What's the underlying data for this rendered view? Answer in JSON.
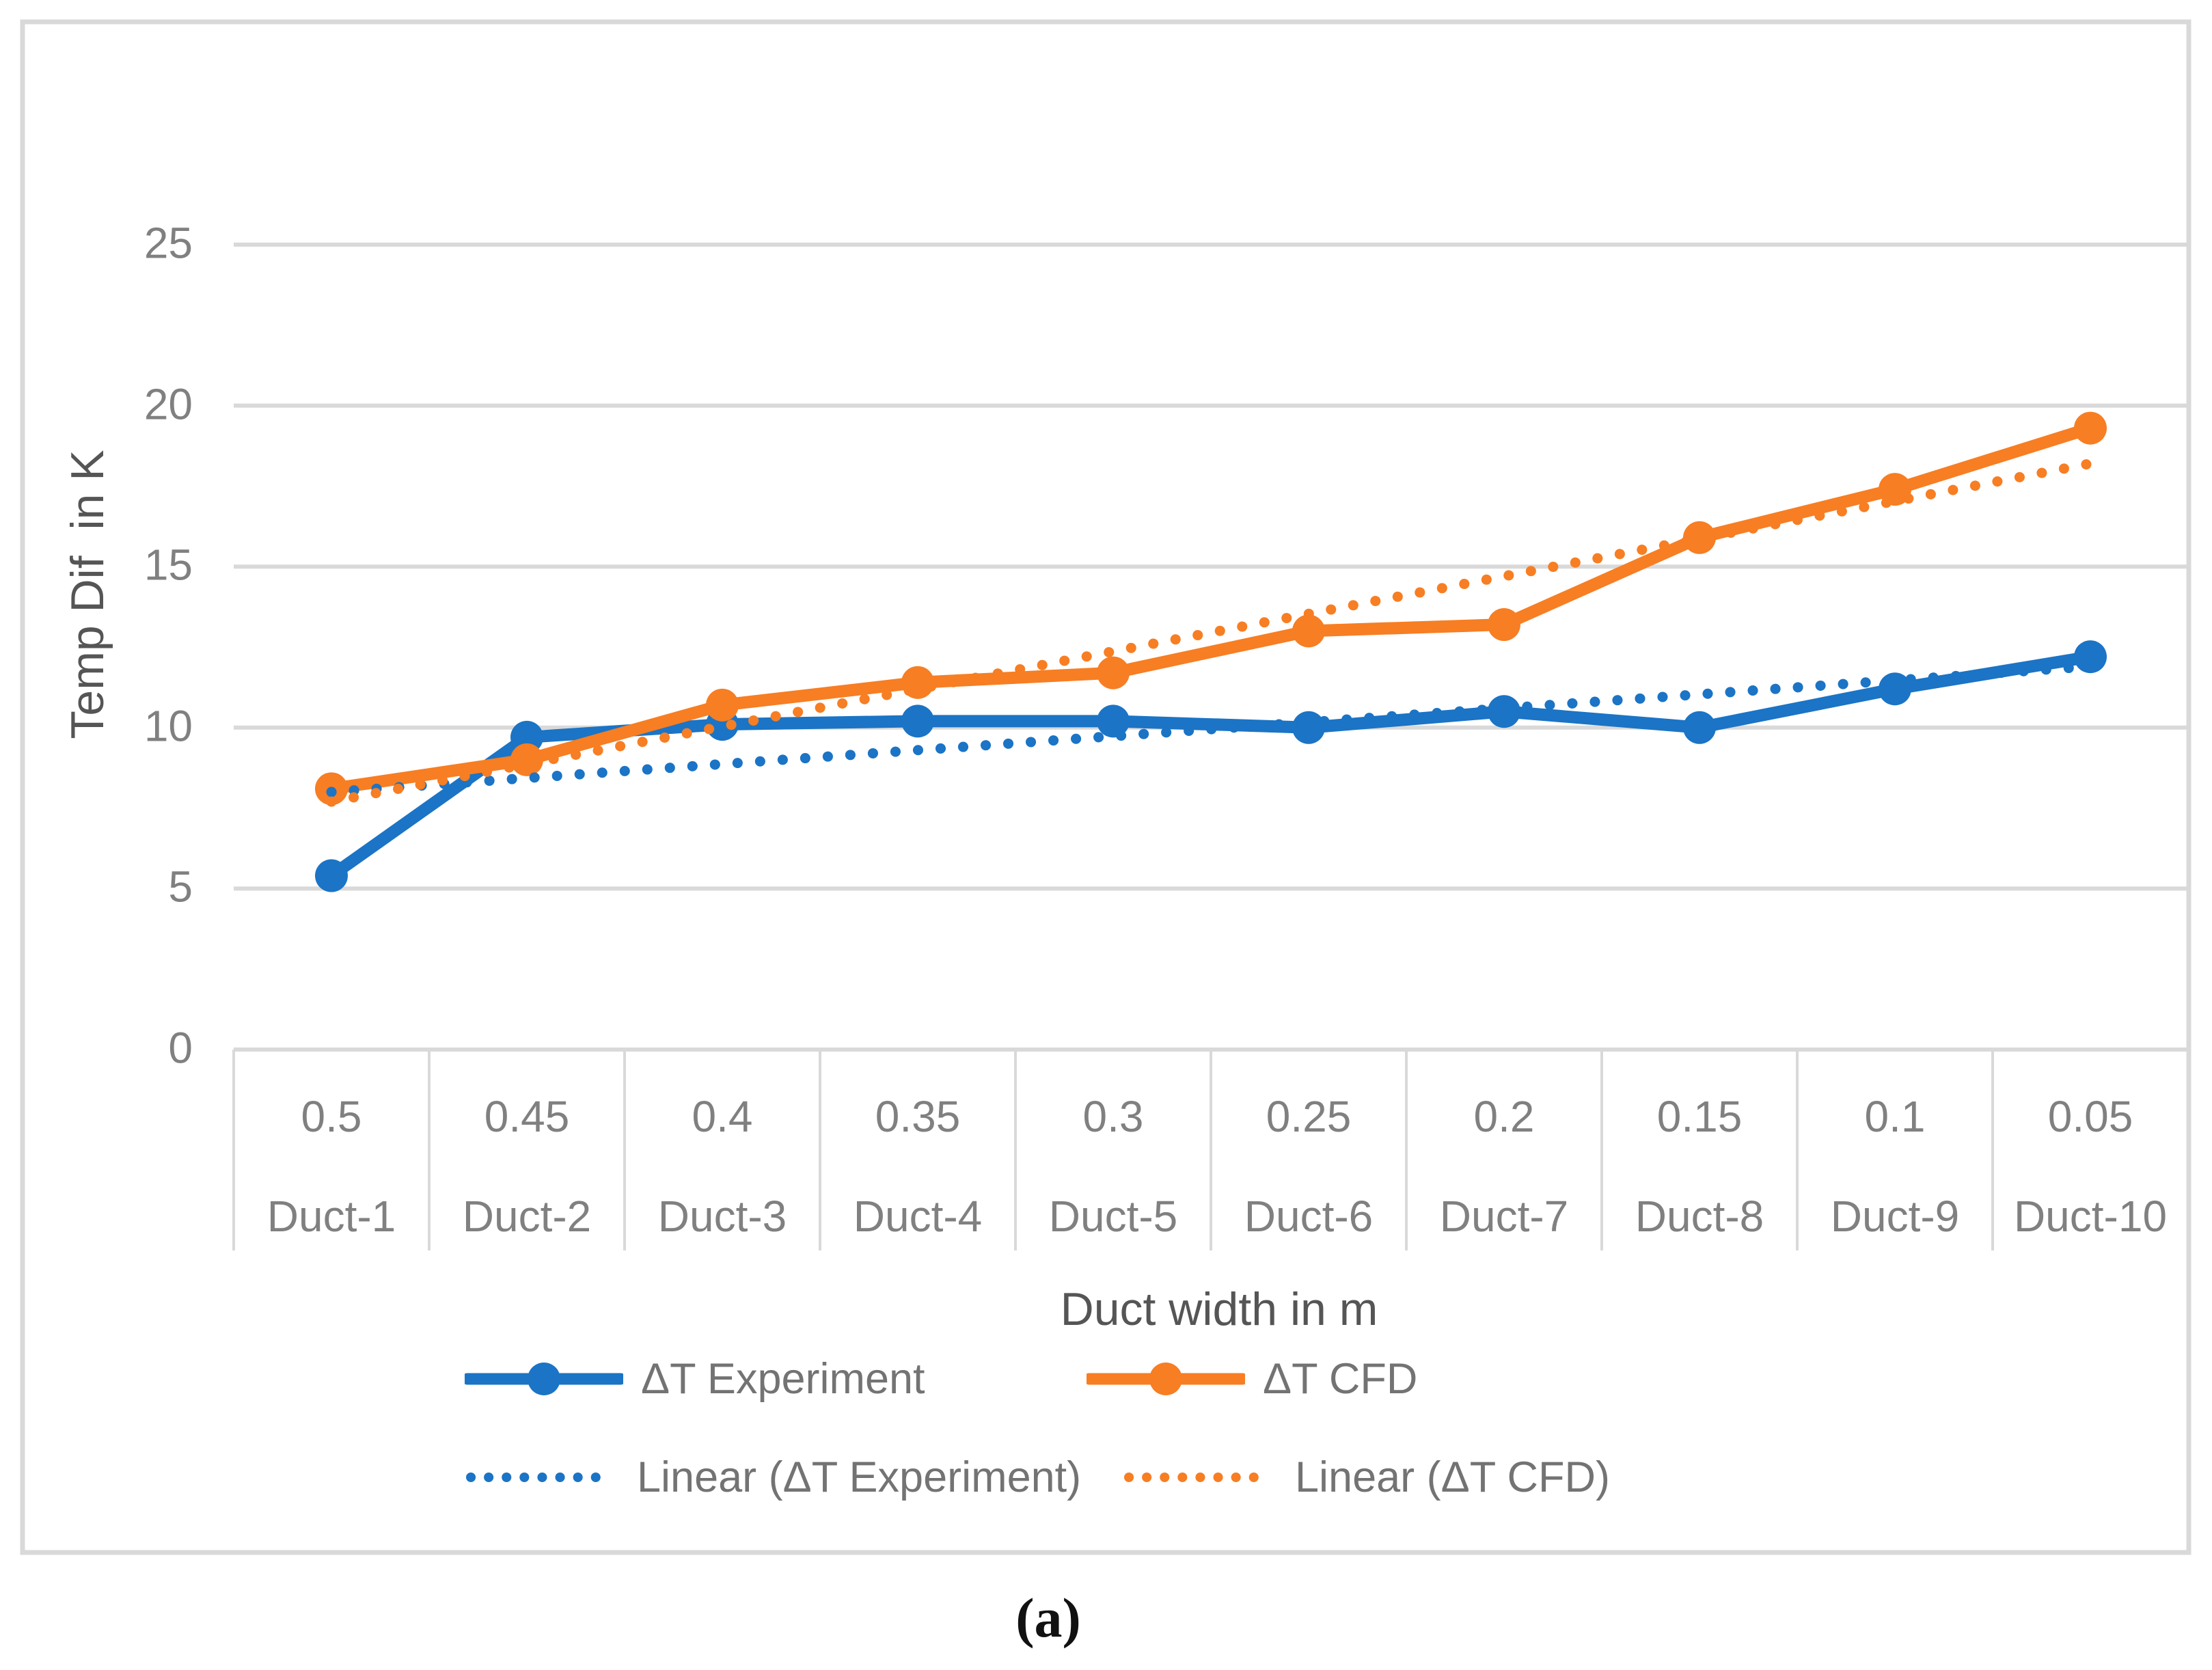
{
  "figure": {
    "caption": "(a)"
  },
  "chart_data": {
    "type": "line",
    "title": "",
    "xlabel": "Duct width in m",
    "ylabel": "Temp Dif  in K",
    "categories": [
      {
        "width": "0.5",
        "duct": "Duct-1"
      },
      {
        "width": "0.45",
        "duct": "Duct-2"
      },
      {
        "width": "0.4",
        "duct": "Duct-3"
      },
      {
        "width": "0.35",
        "duct": "Duct-4"
      },
      {
        "width": "0.3",
        "duct": "Duct-5"
      },
      {
        "width": "0.25",
        "duct": "Duct-6"
      },
      {
        "width": "0.2",
        "duct": "Duct-7"
      },
      {
        "width": "0.15",
        "duct": "Duct-8"
      },
      {
        "width": "0.1",
        "duct": "Duct-9"
      },
      {
        "width": "0.05",
        "duct": "Duct-10"
      }
    ],
    "y_axis": {
      "min": 0,
      "max": 25,
      "step": 5,
      "ticks": [
        "0",
        "5",
        "10",
        "15",
        "20",
        "25"
      ]
    },
    "series": [
      {
        "name": "ΔT Experiment",
        "color": "#1B74C5",
        "values": [
          5.4,
          9.7,
          10.1,
          10.2,
          10.2,
          10.0,
          10.5,
          10.0,
          11.2,
          12.2
        ]
      },
      {
        "name": "ΔT CFD",
        "color": "#F77E23",
        "values": [
          8.1,
          9.0,
          10.7,
          11.4,
          11.7,
          13.0,
          13.2,
          15.9,
          17.4,
          19.3
        ]
      }
    ],
    "trendlines": [
      {
        "name": "Linear (ΔT Experiment)",
        "color": "#1B74C5",
        "start": 8.0,
        "end": 11.9
      },
      {
        "name": "Linear (ΔT CFD)",
        "color": "#F77E23",
        "start": 7.7,
        "end": 18.2
      }
    ],
    "legend_position": "bottom",
    "grid": "horizontal",
    "colors": {
      "gridline": "#D9D9D9",
      "frame": "#D9D9D9",
      "axis_text": "#808080",
      "title_text": "#555555",
      "legend_text": "#737373"
    }
  }
}
